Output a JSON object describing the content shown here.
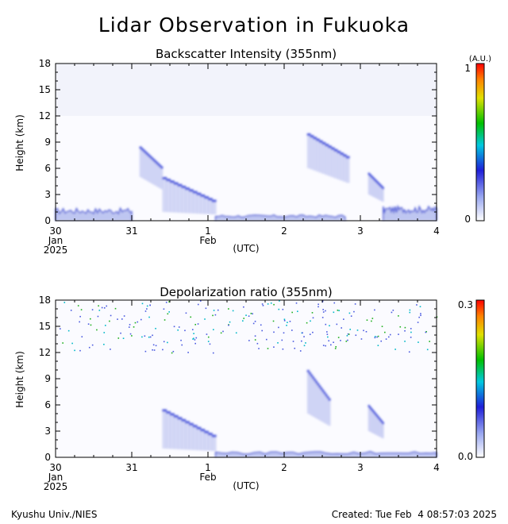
{
  "page": {
    "title": "Lidar Observation in Fukuoka",
    "credit": "Kyushu Univ./NIES",
    "created": "Created: Tue Feb  4 08:57:03 2025"
  },
  "chart_data": [
    {
      "type": "heatmap",
      "title": "Backscatter Intensity (355nm)",
      "ylabel": "Height (km)",
      "xlabel": "(UTC)",
      "x_ticks": [
        "30",
        "31",
        "1",
        "2",
        "3",
        "4"
      ],
      "x_sub": {
        "jan": "Jan",
        "year": "2025",
        "feb": "Feb"
      },
      "xlim_days": [
        0,
        5
      ],
      "ylim": [
        0,
        18
      ],
      "y_ticks": [
        "0",
        "3",
        "6",
        "9",
        "12",
        "15",
        "18"
      ],
      "colorbar": {
        "min": "0",
        "max": "1",
        "unit": "(A.U.)"
      },
      "colors": {
        "low": "#ffffff",
        "mid": "#3a4bd8",
        "high": "#ff2000"
      },
      "features": [
        {
          "kind": "boundary_layer",
          "x": [
            0.0,
            1.0
          ],
          "height": 1.3
        },
        {
          "kind": "cloud",
          "x": [
            1.1,
            1.4
          ],
          "height": [
            5.0,
            8.5
          ]
        },
        {
          "kind": "cloud",
          "x": [
            1.4,
            2.1
          ],
          "height": [
            1.0,
            5.0
          ]
        },
        {
          "kind": "surface",
          "x": [
            2.1,
            3.8
          ],
          "height": 0.6
        },
        {
          "kind": "cloud",
          "x": [
            3.3,
            3.85
          ],
          "height": [
            6.0,
            10.0
          ]
        },
        {
          "kind": "cloud",
          "x": [
            4.1,
            4.3
          ],
          "height": [
            3.0,
            5.5
          ]
        },
        {
          "kind": "boundary_layer",
          "x": [
            4.3,
            5.0
          ],
          "height": 1.5
        }
      ]
    },
    {
      "type": "heatmap",
      "title": "Depolarization ratio (355nm)",
      "ylabel": "Height (km)",
      "xlabel": "(UTC)",
      "x_ticks": [
        "30",
        "31",
        "1",
        "2",
        "3",
        "4"
      ],
      "x_sub": {
        "jan": "Jan",
        "year": "2025",
        "feb": "Feb"
      },
      "xlim_days": [
        0,
        5
      ],
      "ylim": [
        0,
        18
      ],
      "y_ticks": [
        "0",
        "3",
        "6",
        "9",
        "12",
        "15",
        "18"
      ],
      "colorbar": {
        "min": "0.0",
        "max": "0.3"
      },
      "colors": {
        "low": "#ffffff",
        "mid": "#3a4bd8",
        "high": "#ff2000"
      },
      "features": [
        {
          "kind": "noise",
          "x": [
            0.0,
            5.0
          ],
          "height": [
            12.0,
            18.0
          ]
        },
        {
          "kind": "cloud",
          "x": [
            1.4,
            2.1
          ],
          "height": [
            1.0,
            5.5
          ]
        },
        {
          "kind": "cloud",
          "x": [
            3.3,
            3.6
          ],
          "height": [
            5.0,
            10.0
          ]
        },
        {
          "kind": "cloud",
          "x": [
            4.1,
            4.3
          ],
          "height": [
            3.0,
            6.0
          ]
        },
        {
          "kind": "surface",
          "x": [
            2.1,
            5.0
          ],
          "height": 0.6
        }
      ]
    }
  ]
}
